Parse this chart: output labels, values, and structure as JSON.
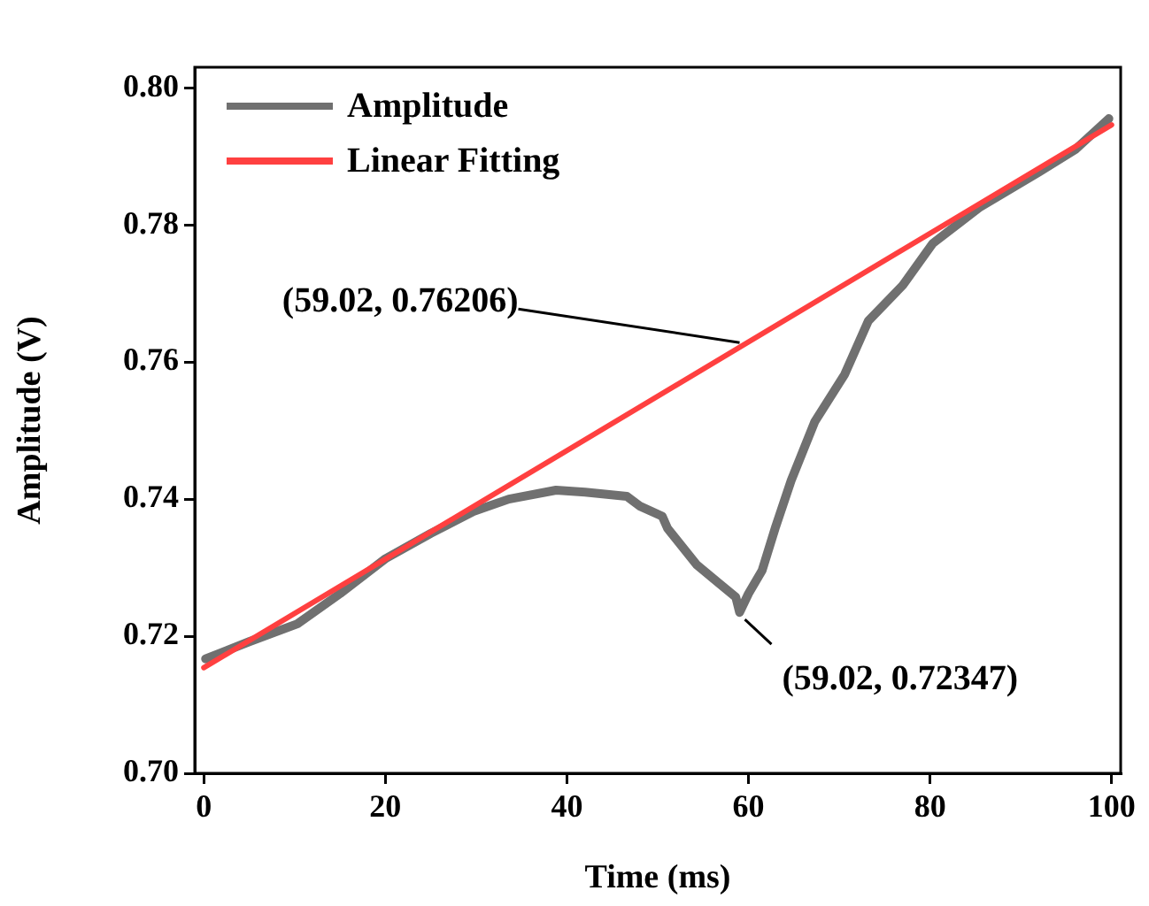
{
  "chart_data": {
    "type": "line",
    "xlabel": "Time (ms)",
    "ylabel": "Amplitude (V)",
    "xlim": [
      -1,
      101
    ],
    "xticks": [
      0,
      20,
      40,
      60,
      80,
      100
    ],
    "ylim": [
      0.7,
      0.803
    ],
    "yticks": [
      {
        "value": 0.7,
        "label": "0.70"
      },
      0.72,
      0.74,
      0.76,
      0.78,
      {
        "value": 0.8,
        "label": "0.80"
      }
    ],
    "legend": "top left",
    "grid": false,
    "marker": "none",
    "line_style": "solid",
    "series": [
      {
        "name": "Amplitude",
        "color": "#707070",
        "x": [
          0.2,
          5,
          10.3,
          15,
          20,
          25,
          29.7,
          33.6,
          38.8,
          42,
          46.6,
          48,
          50.5,
          51.1,
          54.3,
          56.5,
          58.6,
          59.02,
          60,
          61.5,
          63,
          64.7,
          67.3,
          70.6,
          73.2,
          77,
          80.3,
          85.4,
          92,
          96,
          99.7
        ],
        "values": [
          0.7167,
          0.7192,
          0.7218,
          0.7262,
          0.7313,
          0.735,
          0.7382,
          0.74,
          0.7413,
          0.741,
          0.7404,
          0.739,
          0.7375,
          0.7357,
          0.7304,
          0.728,
          0.7257,
          0.72347,
          0.7262,
          0.7296,
          0.736,
          0.7427,
          0.7513,
          0.7582,
          0.766,
          0.7712,
          0.7773,
          0.7825,
          0.7877,
          0.791,
          0.7955
        ]
      },
      {
        "name": "Linear Fitting",
        "color": "#ff4040",
        "x": [
          0,
          100
        ],
        "values": [
          0.7154,
          0.7946
        ]
      }
    ],
    "annotations": [
      {
        "text": "(59.02, 0.76206)",
        "x": 59.02,
        "y": 0.76206
      },
      {
        "text": "(59.02, 0.72347)",
        "x": 59.02,
        "y": 0.72347
      }
    ]
  }
}
